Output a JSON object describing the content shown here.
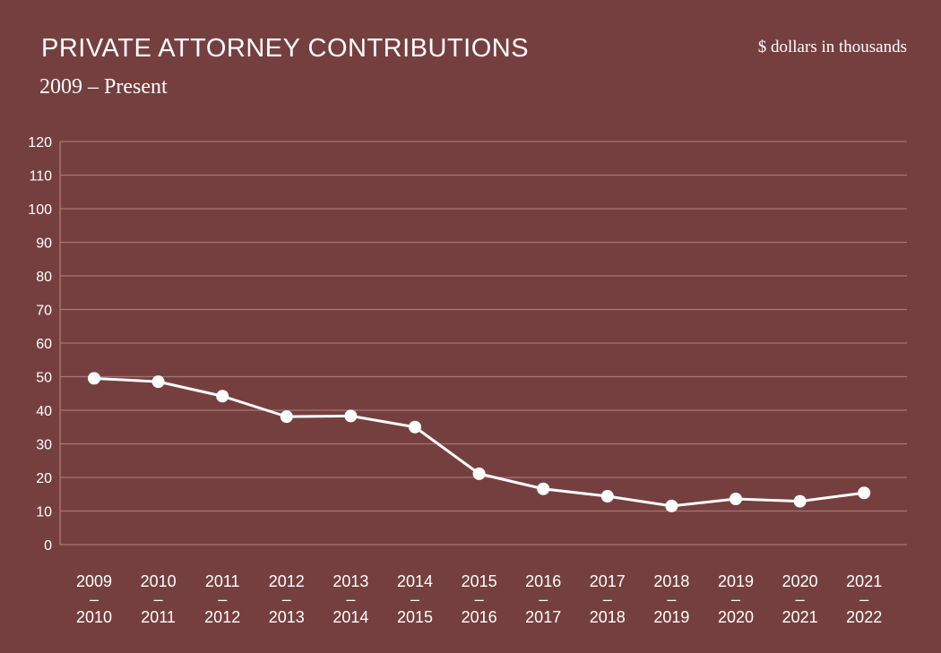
{
  "header": {
    "title": "PRIVATE ATTORNEY CONTRIBUTIONS",
    "subtitle": "2009 – Present",
    "units_note": "$ dollars in thousands"
  },
  "colors": {
    "background": "#763f3f",
    "line": "#ffffff",
    "grid": "#a87474"
  },
  "chart_data": {
    "type": "line",
    "title": "PRIVATE ATTORNEY CONTRIBUTIONS",
    "subtitle": "2009 – Present",
    "ylabel": "$ dollars in thousands",
    "xlabel": "",
    "ylim": [
      0,
      120
    ],
    "yticks": [
      0,
      10,
      20,
      30,
      40,
      50,
      60,
      70,
      80,
      90,
      100,
      110,
      120
    ],
    "grid": true,
    "categories": [
      [
        "2009",
        "–",
        "2010"
      ],
      [
        "2010",
        "–",
        "2011"
      ],
      [
        "2011",
        "–",
        "2012"
      ],
      [
        "2012",
        "–",
        "2013"
      ],
      [
        "2013",
        "–",
        "2014"
      ],
      [
        "2014",
        "–",
        "2015"
      ],
      [
        "2015",
        "–",
        "2016"
      ],
      [
        "2016",
        "–",
        "2017"
      ],
      [
        "2017",
        "–",
        "2018"
      ],
      [
        "2018",
        "–",
        "2019"
      ],
      [
        "2019",
        "–",
        "2020"
      ],
      [
        "2020",
        "–",
        "2021"
      ],
      [
        "2021",
        "–",
        "2022"
      ]
    ],
    "series": [
      {
        "values": [
          49.5,
          48.5,
          44.2,
          38.1,
          38.3,
          35.0,
          21.1,
          16.6,
          14.4,
          11.5,
          13.6,
          12.9,
          15.4
        ]
      }
    ]
  }
}
